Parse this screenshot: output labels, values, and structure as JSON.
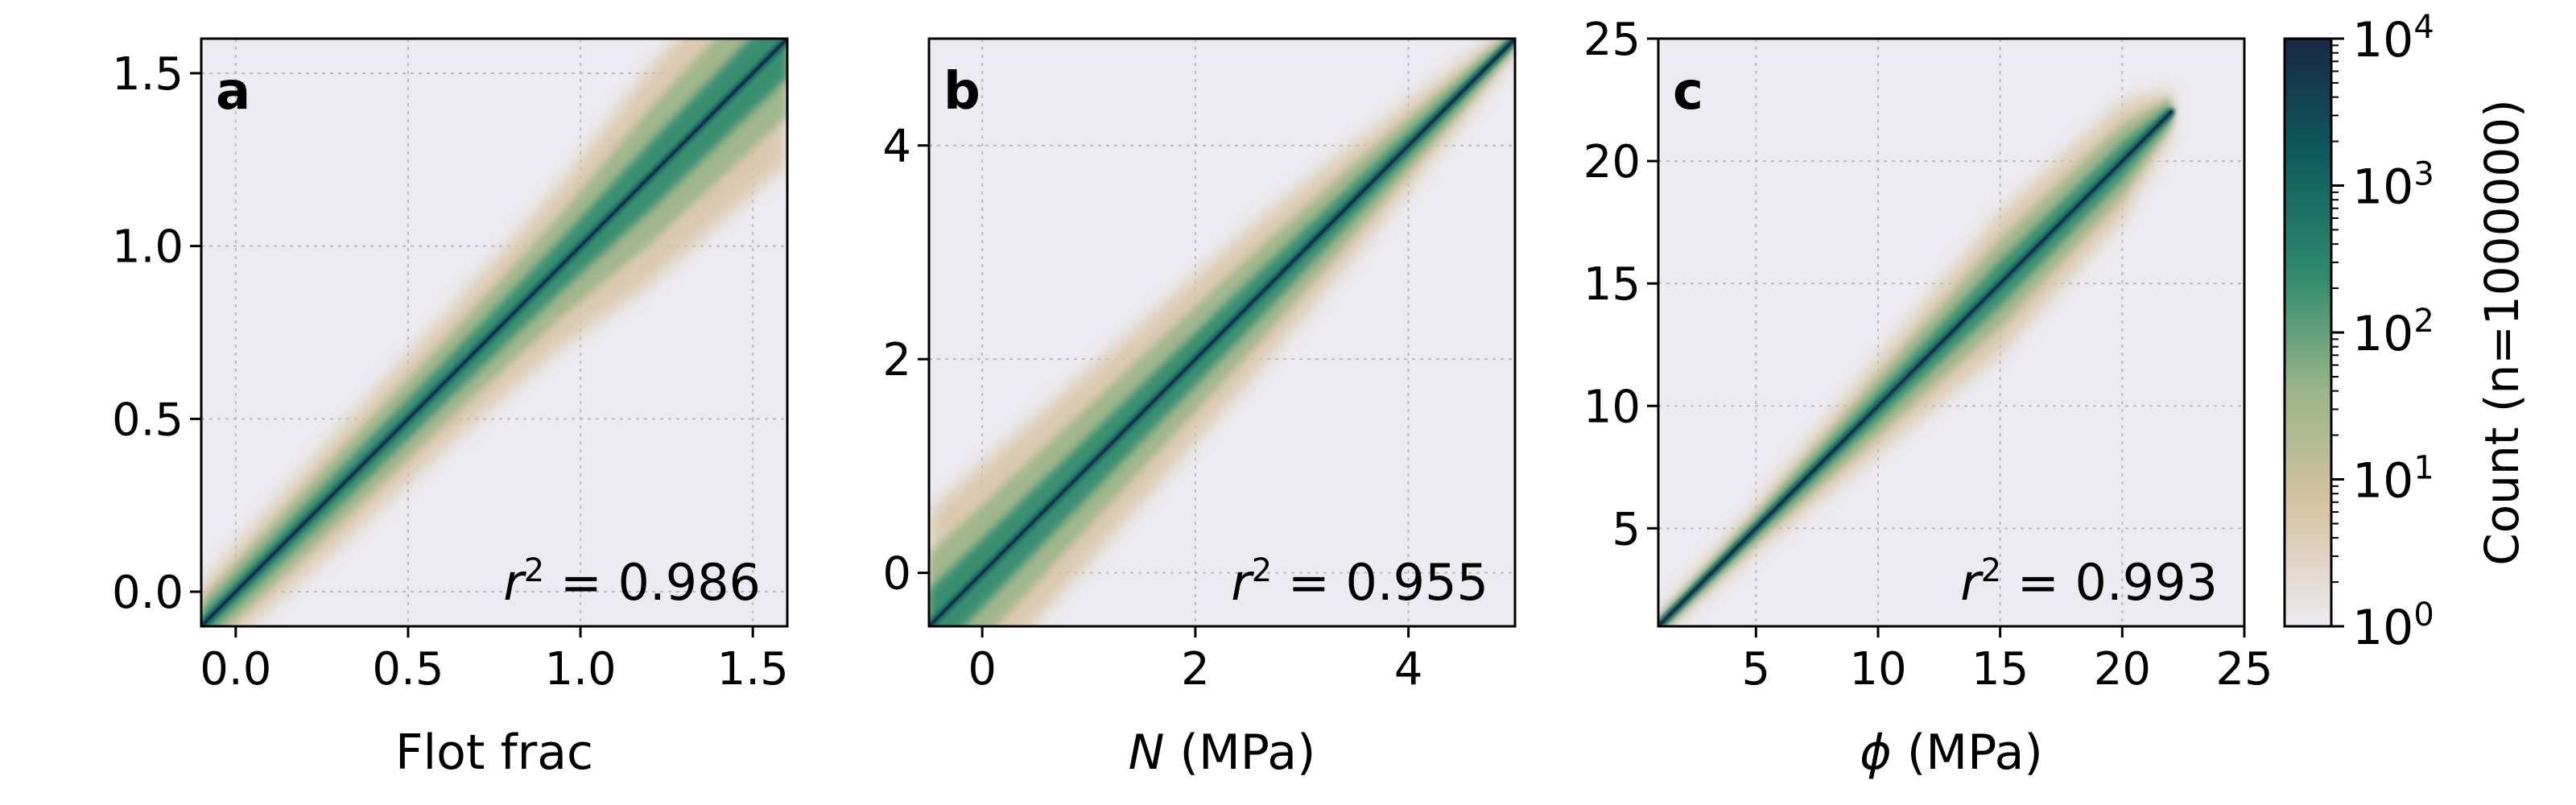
{
  "figure": {
    "colorbar": {
      "label": "Count (n=1000000)",
      "scale": "log",
      "range": [
        1,
        10000
      ],
      "ticks": [
        {
          "base": "10",
          "exp": "0",
          "value": 1
        },
        {
          "base": "10",
          "exp": "1",
          "value": 10
        },
        {
          "base": "10",
          "exp": "2",
          "value": 100
        },
        {
          "base": "10",
          "exp": "3",
          "value": 1000
        },
        {
          "base": "10",
          "exp": "4",
          "value": 10000
        }
      ],
      "colors": [
        "#ecebf1",
        "#d8c4a5",
        "#9bb589",
        "#2f8a6e",
        "#0d5c5c",
        "#1a2746"
      ]
    }
  },
  "chart_data": [
    {
      "type": "heatmap",
      "panel": "a",
      "xlabel": "Flot frac",
      "xlabel_italic": "",
      "ylabel": "",
      "xlim": [
        -0.1,
        1.6
      ],
      "ylim": [
        -0.1,
        1.6
      ],
      "xticks": [
        0.0,
        0.5,
        1.0,
        1.5
      ],
      "yticks": [
        0.0,
        0.5,
        1.0,
        1.5
      ],
      "xtick_labels": [
        "0.0",
        "0.5",
        "1.0",
        "1.5"
      ],
      "ytick_labels": [
        "0.0",
        "0.5",
        "1.0",
        "1.5"
      ],
      "grid": true,
      "annotation": {
        "prefix": "r",
        "sup": "2",
        "suffix": " = 0.986",
        "r2": 0.986
      },
      "density_ridge": {
        "x": [
          -0.1,
          0.3,
          0.6,
          0.8,
          0.95,
          1.2,
          1.6
        ],
        "y": [
          -0.1,
          0.3,
          0.6,
          0.8,
          0.95,
          1.2,
          1.6
        ],
        "spread": [
          0.05,
          0.07,
          0.08,
          0.09,
          0.1,
          0.13,
          0.15
        ]
      }
    },
    {
      "type": "heatmap",
      "panel": "b",
      "xlabel": " (MPa)",
      "xlabel_italic": "N",
      "ylabel": "",
      "xlim": [
        -0.5,
        5.0
      ],
      "ylim": [
        -0.5,
        5.0
      ],
      "xticks": [
        0,
        2,
        4
      ],
      "yticks": [
        0,
        2,
        4
      ],
      "xtick_labels": [
        "0",
        "2",
        "4"
      ],
      "ytick_labels": [
        "0",
        "2",
        "4"
      ],
      "grid": true,
      "annotation": {
        "prefix": "r",
        "sup": "2",
        "suffix": " = 0.955",
        "r2": 0.955
      },
      "density_ridge": {
        "x": [
          -0.5,
          0.5,
          1.5,
          2.5,
          3.5,
          4.5,
          5.0
        ],
        "y": [
          -0.5,
          0.5,
          1.5,
          2.5,
          3.5,
          4.5,
          5.0
        ],
        "spread": [
          0.45,
          0.4,
          0.35,
          0.3,
          0.22,
          0.12,
          0.06
        ]
      }
    },
    {
      "type": "heatmap",
      "panel": "c",
      "xlabel": " (MPa)",
      "xlabel_italic": "ϕ",
      "ylabel": "",
      "xlim": [
        1,
        25
      ],
      "ylim": [
        1,
        25
      ],
      "xticks": [
        5,
        10,
        15,
        20,
        25
      ],
      "yticks": [
        5,
        10,
        15,
        20,
        25
      ],
      "xtick_labels": [
        "5",
        "10",
        "15",
        "20",
        "25"
      ],
      "ytick_labels": [
        "5",
        "10",
        "15",
        "20",
        "25"
      ],
      "grid": true,
      "annotation": {
        "prefix": "r",
        "sup": "2",
        "suffix": " = 0.993",
        "r2": 0.993
      },
      "density_ridge": {
        "x": [
          1,
          5,
          10,
          15,
          20,
          22
        ],
        "y": [
          1,
          5,
          10,
          15,
          20,
          22
        ],
        "spread": [
          0.2,
          0.4,
          0.8,
          1.2,
          1.0,
          0.4
        ]
      }
    }
  ]
}
